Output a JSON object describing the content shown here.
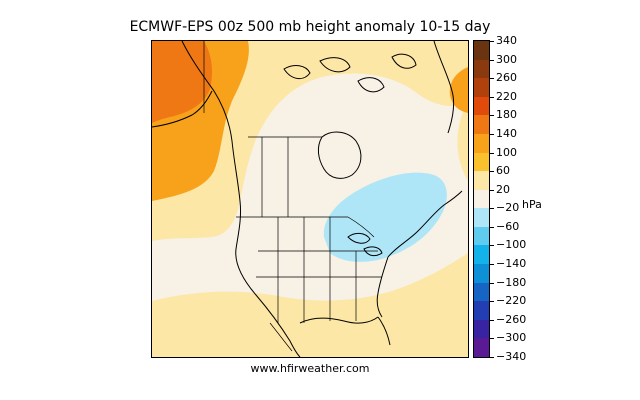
{
  "title": "ECMWF-EPS 00z 500 mb height anomaly 10-15 day",
  "credit": "www.hfirweather.com",
  "colorbar": {
    "unit": "hPa",
    "ticks": [
      "340",
      "300",
      "260",
      "220",
      "180",
      "140",
      "100",
      "60",
      "20",
      "−20",
      "−60",
      "−100",
      "−140",
      "−180",
      "−220",
      "−260",
      "−300",
      "−340"
    ],
    "bins": [
      {
        "range": "300 to 340",
        "color": "#6b3410"
      },
      {
        "range": "260 to 300",
        "color": "#8b3a0f"
      },
      {
        "range": "220 to 260",
        "color": "#b0400c"
      },
      {
        "range": "180 to 220",
        "color": "#e04a0a"
      },
      {
        "range": "140 to 180",
        "color": "#f07814"
      },
      {
        "range": "100 to 140",
        "color": "#f8a21c"
      },
      {
        "range": "60 to 100",
        "color": "#fbc02e"
      },
      {
        "range": "20 to 60",
        "color": "#fde7a6"
      },
      {
        "range": "-20 to 20",
        "color": "#f7f1e6"
      },
      {
        "range": "-60 to -20",
        "color": "#aee6f7"
      },
      {
        "range": "-100 to -60",
        "color": "#5fcbee"
      },
      {
        "range": "-140 to -100",
        "color": "#14b2ea"
      },
      {
        "range": "-180 to -140",
        "color": "#0e8fd6"
      },
      {
        "range": "-220 to -180",
        "color": "#1664c4"
      },
      {
        "range": "-260 to -220",
        "color": "#223eb2"
      },
      {
        "range": "-300 to -260",
        "color": "#3824a2"
      },
      {
        "range": "-340 to -300",
        "color": "#5a1a94"
      }
    ]
  },
  "map": {
    "region": "North America",
    "anomaly_colors": {
      "strong_positive": "#f07814",
      "moderate_positive": "#f8a21c",
      "weak_positive": "#fde7a6",
      "neutral": "#f7f1e6",
      "weak_negative": "#aee6f7"
    }
  }
}
